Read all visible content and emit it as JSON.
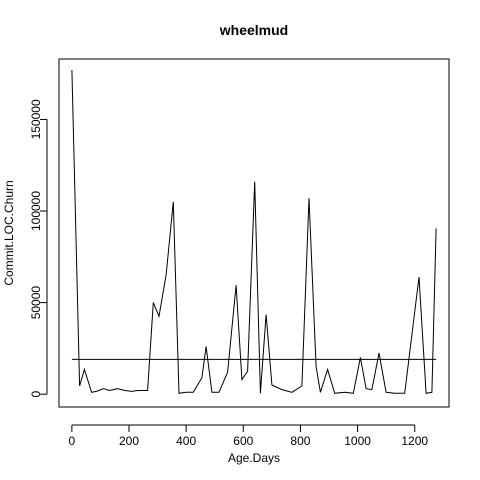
{
  "chart_data": {
    "type": "line",
    "title": "wheelmud",
    "xlabel": "Age.Days",
    "ylabel": "Commit.LOC.Churn",
    "xlim": [
      -45,
      1320
    ],
    "ylim": [
      -7000,
      183000
    ],
    "x_ticks": [
      0,
      200,
      400,
      600,
      800,
      1000,
      1200
    ],
    "x_tick_labels": [
      "0",
      "200",
      "400",
      "600",
      "800",
      "1000",
      "1200"
    ],
    "y_ticks": [
      0,
      50000,
      100000,
      150000
    ],
    "y_tick_labels": [
      "0",
      "50000",
      "100000",
      "150000"
    ],
    "grid": false,
    "series": [
      {
        "x": [
          0,
          27,
          44,
          69,
          86,
          111,
          132,
          160,
          185,
          210,
          230,
          265,
          285,
          305,
          330,
          355,
          375,
          400,
          425,
          455,
          470,
          490,
          515,
          545,
          575,
          595,
          615,
          640,
          660,
          680,
          700,
          735,
          770,
          805,
          830,
          855,
          870,
          895,
          920,
          955,
          985,
          1010,
          1030,
          1050,
          1075,
          1100,
          1130,
          1165,
          1215,
          1240,
          1260,
          1275
        ],
        "y": [
          177000,
          4500,
          13500,
          1000,
          1500,
          3000,
          2000,
          3000,
          2000,
          1500,
          2000,
          2000,
          50000,
          42500,
          65000,
          105000,
          500,
          1000,
          1000,
          9000,
          26000,
          1000,
          1000,
          12000,
          59500,
          8000,
          12500,
          116000,
          500,
          43500,
          5000,
          2500,
          1000,
          4500,
          107000,
          15000,
          1000,
          13500,
          500,
          1000,
          500,
          20000,
          3000,
          2500,
          22500,
          1000,
          500,
          500,
          64000,
          500,
          1000,
          90500
        ]
      },
      {
        "x": [
          0,
          1275
        ],
        "y": [
          19000,
          19000
        ]
      }
    ]
  }
}
